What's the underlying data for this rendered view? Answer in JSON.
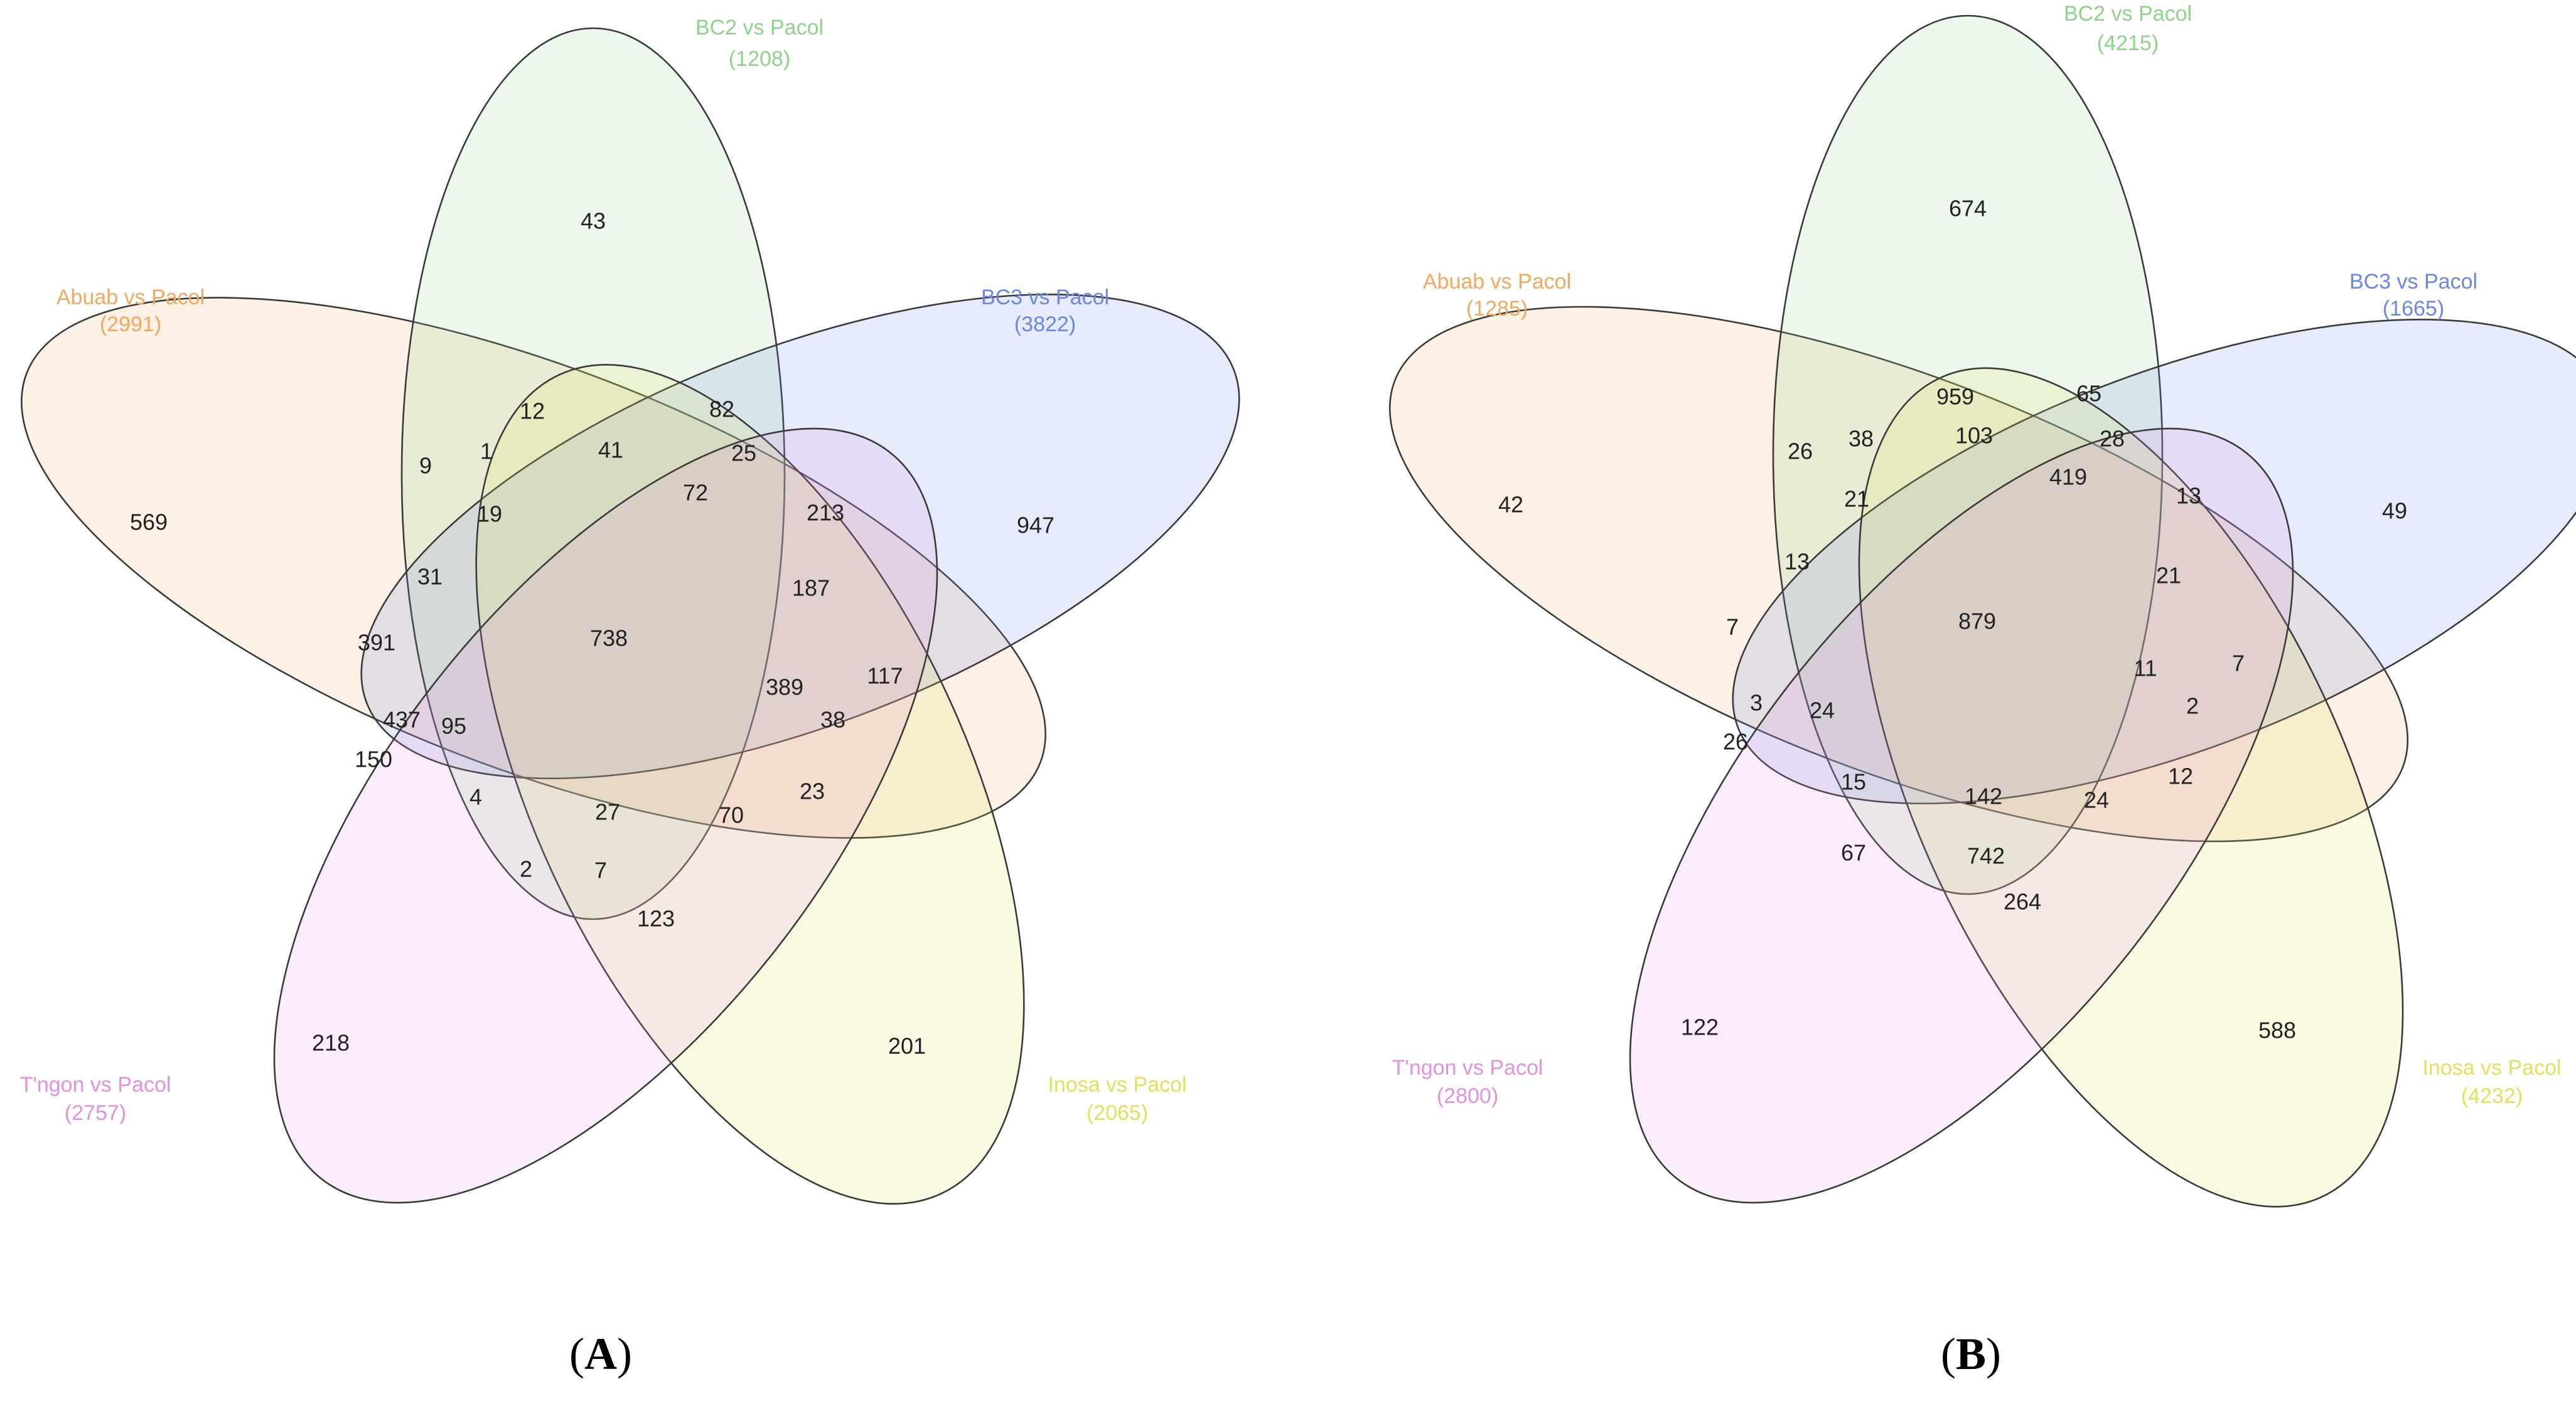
{
  "panels": [
    {
      "id": "A",
      "caption_letter": "A",
      "sets": [
        {
          "key": "abuab",
          "name": "Abuab vs Pacol",
          "count": "(2991)",
          "color": "#f3a860"
        },
        {
          "key": "bc2",
          "name": "BC2 vs Pacol",
          "count": "(1208)",
          "color": "#8fd38a"
        },
        {
          "key": "bc3",
          "name": "BC3 vs Pacol",
          "count": "(3822)",
          "color": "#6d86e6"
        },
        {
          "key": "inosa",
          "name": "Inosa vs Pacol",
          "count": "(2065)",
          "color": "#e3e05a"
        },
        {
          "key": "tngon",
          "name": "T'ngon vs Pacol",
          "count": "(2757)",
          "color": "#e390e0"
        }
      ],
      "regions": [
        "43",
        "569",
        "947",
        "218",
        "201",
        "12",
        "82",
        "9",
        "1",
        "41",
        "25",
        "19",
        "72",
        "213",
        "31",
        "187",
        "391",
        "738",
        "117",
        "389",
        "437",
        "95",
        "38",
        "150",
        "4",
        "27",
        "70",
        "23",
        "2",
        "7",
        "123"
      ]
    },
    {
      "id": "B",
      "caption_letter": "B",
      "sets": [
        {
          "key": "abuab",
          "name": "Abuab vs Pacol",
          "count": "(1285)",
          "color": "#f3a860"
        },
        {
          "key": "bc2",
          "name": "BC2 vs Pacol",
          "count": "(4215)",
          "color": "#8fd38a"
        },
        {
          "key": "bc3",
          "name": "BC3 vs Pacol",
          "count": "(1665)",
          "color": "#6d86e6"
        },
        {
          "key": "inosa",
          "name": "Inosa vs Pacol",
          "count": "(4232)",
          "color": "#e3e05a"
        },
        {
          "key": "tngon",
          "name": "T'ngon vs Pacol",
          "count": "(2800)",
          "color": "#e390e0"
        }
      ],
      "regions": [
        "674",
        "42",
        "49",
        "122",
        "588",
        "959",
        "65",
        "26",
        "38",
        "103",
        "28",
        "21",
        "419",
        "13",
        "13",
        "21",
        "7",
        "879",
        "7",
        "11",
        "3",
        "24",
        "2",
        "26",
        "15",
        "142",
        "24",
        "12",
        "67",
        "742",
        "264"
      ]
    }
  ],
  "colors": {
    "outline": "#3a3a3a",
    "number_text": "#222222",
    "caption_text": "#000000"
  }
}
